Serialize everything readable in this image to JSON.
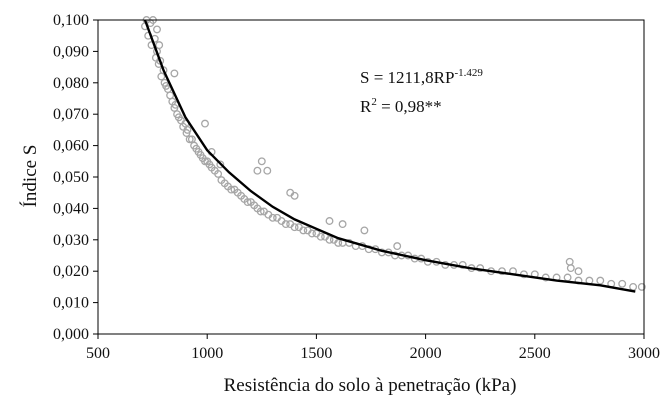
{
  "chart_data": {
    "type": "scatter",
    "xlabel": "Resistência do solo à penetração (kPa)",
    "ylabel": "Índice S",
    "xlim": [
      500,
      3000
    ],
    "ylim": [
      0.0,
      0.1
    ],
    "x_ticks": [
      500,
      1000,
      1500,
      2000,
      2500,
      3000
    ],
    "x_tick_labels": [
      "500",
      "1000",
      "1500",
      "2000",
      "2500",
      "3000"
    ],
    "y_ticks": [
      0.0,
      0.01,
      0.02,
      0.03,
      0.04,
      0.05,
      0.06,
      0.07,
      0.08,
      0.09,
      0.1
    ],
    "y_tick_labels": [
      "0,000",
      "0,010",
      "0,020",
      "0,030",
      "0,040",
      "0,050",
      "0,060",
      "0,070",
      "0,080",
      "0,090",
      "0,100"
    ],
    "grid": false,
    "legend": "none",
    "colors": {
      "points": "#a6a6a6",
      "curve": "#000000"
    },
    "annotation": {
      "equation_main": "S = 1211,8RP",
      "equation_exp": "-1.429",
      "r2_prefix": "R",
      "r2_exp": "2",
      "r2_value": " = 0,98**"
    },
    "fit_curve": {
      "model": "power",
      "coefficient": 1211.8,
      "exponent": -1.429,
      "x": [
        715,
        800,
        900,
        1000,
        1100,
        1200,
        1300,
        1400,
        1500,
        1600,
        1800,
        2000,
        2200,
        2400,
        2600,
        2800,
        2960
      ],
      "y": [
        0.1,
        0.084,
        0.069,
        0.0585,
        0.0515,
        0.0455,
        0.0405,
        0.0365,
        0.0335,
        0.0305,
        0.0265,
        0.0235,
        0.021,
        0.019,
        0.017,
        0.0155,
        0.0135
      ]
    },
    "scatter": {
      "x": [
        715,
        722,
        730,
        740,
        745,
        752,
        760,
        765,
        770,
        778,
        785,
        790,
        800,
        805,
        812,
        820,
        830,
        840,
        850,
        855,
        862,
        870,
        880,
        890,
        900,
        905,
        910,
        920,
        930,
        940,
        950,
        960,
        970,
        980,
        990,
        1000,
        1010,
        1020,
        1035,
        1050,
        1065,
        1080,
        1095,
        1110,
        1125,
        1140,
        1155,
        1170,
        1185,
        1200,
        1215,
        1230,
        1245,
        1260,
        1280,
        1300,
        1320,
        1340,
        1360,
        1380,
        1400,
        1420,
        1440,
        1460,
        1480,
        1500,
        1520,
        1540,
        1560,
        1580,
        1600,
        1620,
        1650,
        1680,
        1710,
        1740,
        1770,
        1800,
        1830,
        1860,
        1890,
        1920,
        1950,
        1980,
        2010,
        2050,
        2090,
        2130,
        2170,
        2210,
        2250,
        2300,
        2350,
        2400,
        2450,
        2500,
        2550,
        2600,
        2650,
        2700,
        2750,
        2800,
        2850,
        2900,
        2950,
        2990,
        770,
        780,
        850,
        990,
        1020,
        1060,
        1230,
        1250,
        1275,
        1380,
        1400,
        1560,
        1620,
        1720,
        1870,
        2660,
        2665,
        2700
      ],
      "y": [
        0.098,
        0.1,
        0.095,
        0.099,
        0.092,
        0.1,
        0.094,
        0.088,
        0.09,
        0.086,
        0.087,
        0.082,
        0.084,
        0.08,
        0.079,
        0.078,
        0.076,
        0.074,
        0.072,
        0.073,
        0.07,
        0.069,
        0.068,
        0.066,
        0.067,
        0.064,
        0.065,
        0.062,
        0.062,
        0.06,
        0.059,
        0.058,
        0.057,
        0.056,
        0.055,
        0.055,
        0.054,
        0.053,
        0.052,
        0.051,
        0.049,
        0.048,
        0.047,
        0.046,
        0.046,
        0.045,
        0.044,
        0.043,
        0.042,
        0.042,
        0.041,
        0.04,
        0.039,
        0.039,
        0.038,
        0.037,
        0.037,
        0.036,
        0.035,
        0.035,
        0.034,
        0.034,
        0.033,
        0.033,
        0.032,
        0.032,
        0.031,
        0.031,
        0.03,
        0.03,
        0.029,
        0.029,
        0.029,
        0.028,
        0.028,
        0.027,
        0.027,
        0.026,
        0.026,
        0.025,
        0.025,
        0.025,
        0.024,
        0.024,
        0.023,
        0.023,
        0.022,
        0.022,
        0.022,
        0.021,
        0.021,
        0.02,
        0.02,
        0.02,
        0.019,
        0.019,
        0.018,
        0.018,
        0.018,
        0.017,
        0.017,
        0.017,
        0.016,
        0.016,
        0.015,
        0.015,
        0.097,
        0.092,
        0.083,
        0.067,
        0.058,
        0.054,
        0.052,
        0.055,
        0.052,
        0.045,
        0.044,
        0.036,
        0.035,
        0.033,
        0.028,
        0.023,
        0.021,
        0.02
      ]
    }
  }
}
